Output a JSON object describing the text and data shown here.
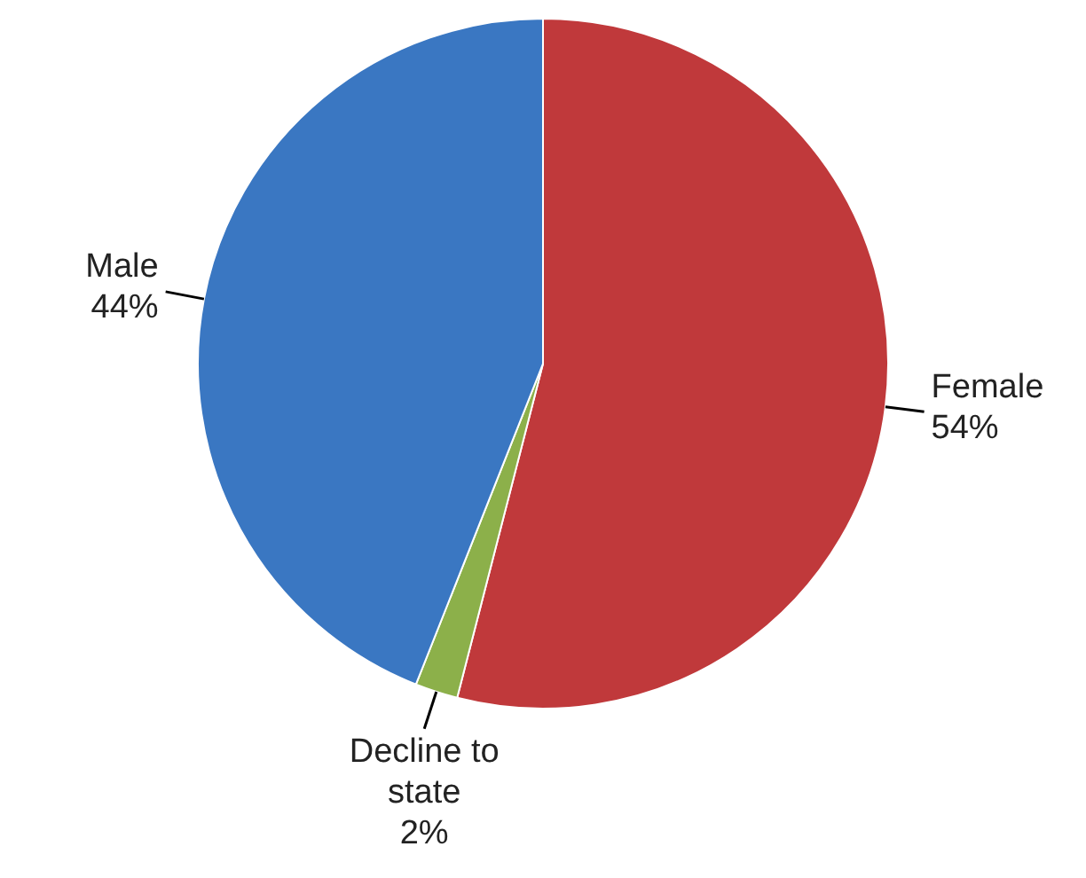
{
  "chart_data": {
    "type": "pie",
    "categories": [
      "Female",
      "Decline to state",
      "Male"
    ],
    "values": [
      54,
      2,
      44
    ],
    "value_labels": [
      "54%",
      "2%",
      "44%"
    ],
    "colors": [
      "#c0393b",
      "#8cb04a",
      "#3a77c2"
    ]
  }
}
